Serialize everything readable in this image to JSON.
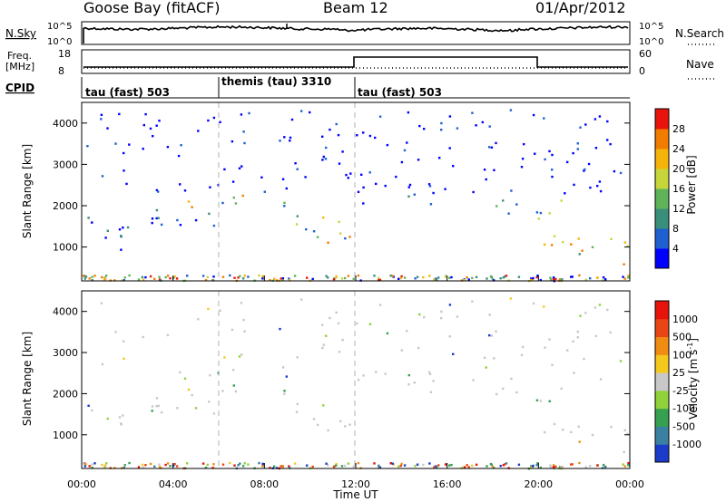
{
  "header": {
    "station": "Goose Bay (fitACF)",
    "beam": "Beam 12",
    "date": "01/Apr/2012"
  },
  "noise_panel": {
    "left_label": "N.Sky",
    "right_label": "N.Search",
    "left_ticks": [
      "10^5",
      "10^0"
    ],
    "right_ticks": [
      "10^5",
      "10^0"
    ]
  },
  "freq_panel": {
    "left_label_line1": "Freq.",
    "left_label_line2": "[MHz]",
    "left_ticks": [
      "18",
      "8"
    ],
    "right_label": "Nave",
    "right_ticks": [
      "60",
      "0"
    ]
  },
  "cpid_panel": {
    "label": "CPID",
    "modes": [
      {
        "label": "tau (fast) 503",
        "start_hour": 0
      },
      {
        "label": "themis (tau) 3310",
        "start_hour": 6
      },
      {
        "label": "tau (fast) 503",
        "start_hour": 12
      }
    ]
  },
  "chart_data": [
    {
      "type": "heatmap",
      "name": "power-panel",
      "xlabel": "",
      "ylabel": "Slant Range [km]",
      "xlim": [
        0,
        24
      ],
      "ylim": [
        180,
        4500
      ],
      "yticks": [
        1000,
        2000,
        3000,
        4000
      ],
      "colorbar": {
        "label": "Power [dB]",
        "ticks": [
          "4",
          "8",
          "12",
          "16",
          "20",
          "24",
          "28"
        ],
        "colors": [
          "#0000ff",
          "#1f5fd0",
          "#3a8f7a",
          "#5fb45a",
          "#c6d63a",
          "#f5b40a",
          "#f07c00",
          "#e8140c"
        ]
      },
      "features": [
        {
          "from_hour": 0.0,
          "to_hour": 2.5,
          "range_km": [
            850,
            1750
          ],
          "level": "low"
        },
        {
          "from_hour": 3.0,
          "to_hour": 6.0,
          "range_km": [
            1500,
            2300
          ],
          "level": "low"
        },
        {
          "from_hour": 4.5,
          "to_hour": 9.0,
          "range_km": [
            1900,
            2300
          ],
          "level": "high"
        },
        {
          "from_hour": 9.0,
          "to_hour": 12.0,
          "range_km": [
            1100,
            1900
          ],
          "level": "high"
        },
        {
          "from_hour": 12.0,
          "to_hour": 16.0,
          "range_km": [
            2000,
            2600
          ],
          "level": "low"
        },
        {
          "from_hour": 17.0,
          "to_hour": 21.0,
          "range_km": [
            1700,
            2200
          ],
          "level": "medium"
        },
        {
          "from_hour": 20.0,
          "to_hour": 24.0,
          "range_km": [
            600,
            1300
          ],
          "level": "high"
        }
      ]
    },
    {
      "type": "heatmap",
      "name": "velocity-panel",
      "xlabel": "Time UT",
      "ylabel": "Slant Range [km]",
      "xlim": [
        0,
        24
      ],
      "ylim": [
        180,
        4500
      ],
      "yticks": [
        1000,
        2000,
        3000,
        4000
      ],
      "xticks": [
        "00:00",
        "04:00",
        "08:00",
        "12:00",
        "16:00",
        "20:00",
        "00:00"
      ],
      "colorbar": {
        "label": "Velocity [m s",
        "label_superscript": "-1",
        "label_close": "]",
        "ticks": [
          "1000",
          "500",
          "100",
          "25",
          "-25",
          "-100",
          "-500",
          "-1000"
        ],
        "colors": [
          "#1a3cc8",
          "#3a80a0",
          "#36a050",
          "#8fd23a",
          "#c8c8c8",
          "#f5c81e",
          "#f08c14",
          "#e84614",
          "#e6140a"
        ]
      }
    }
  ]
}
